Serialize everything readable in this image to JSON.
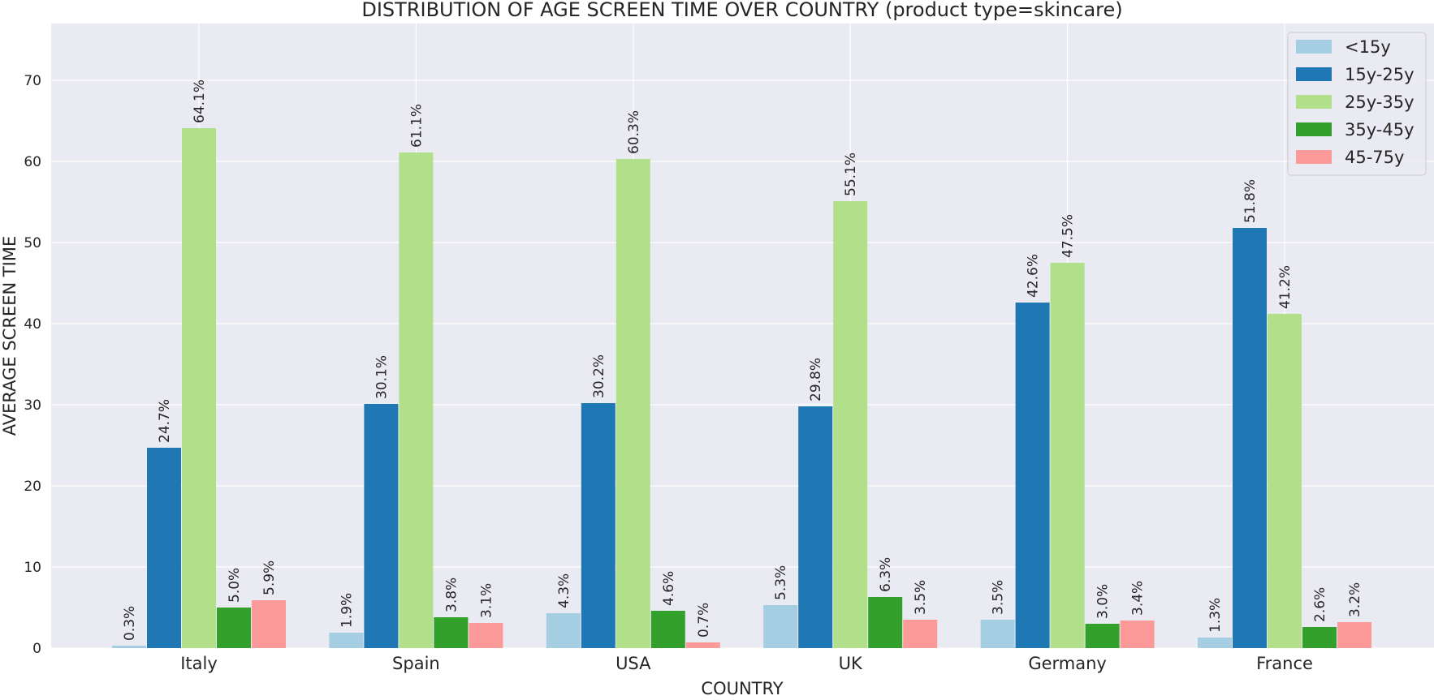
{
  "chart_data": {
    "type": "bar",
    "title": "DISTRIBUTION OF AGE SCREEN TIME OVER COUNTRY (product type=skincare)",
    "xlabel": "COUNTRY",
    "ylabel": "AVERAGE SCREEN TIME",
    "categories": [
      "Italy",
      "Spain",
      "USA",
      "UK",
      "Germany",
      "France"
    ],
    "ylim": [
      0,
      77
    ],
    "yticks": [
      "0",
      "10",
      "20",
      "30",
      "40",
      "50",
      "60",
      "70"
    ],
    "grid": true,
    "legend_position": "top-right",
    "series": [
      {
        "name": "<15y",
        "color": "#a6cee3",
        "values": [
          0.3,
          1.9,
          4.3,
          5.3,
          3.5,
          1.3
        ],
        "labels": [
          "0.3%",
          "1.9%",
          "4.3%",
          "5.3%",
          "3.5%",
          "1.3%"
        ]
      },
      {
        "name": "15y-25y",
        "color": "#1f78b4",
        "values": [
          24.7,
          30.1,
          30.2,
          29.8,
          42.6,
          51.8
        ],
        "labels": [
          "24.7%",
          "30.1%",
          "30.2%",
          "29.8%",
          "42.6%",
          "51.8%"
        ]
      },
      {
        "name": "25y-35y",
        "color": "#b2df8a",
        "values": [
          64.1,
          61.1,
          60.3,
          55.1,
          47.5,
          41.2
        ],
        "labels": [
          "64.1%",
          "61.1%",
          "60.3%",
          "55.1%",
          "47.5%",
          "41.2%"
        ]
      },
      {
        "name": "35y-45y",
        "color": "#33a02c",
        "values": [
          5.0,
          3.8,
          4.6,
          6.3,
          3.0,
          2.6
        ],
        "labels": [
          "5.0%",
          "3.8%",
          "4.6%",
          "6.3%",
          "3.0%",
          "2.6%"
        ]
      },
      {
        "name": "45-75y",
        "color": "#fb9a99",
        "values": [
          5.9,
          3.1,
          0.7,
          3.5,
          3.4,
          3.2
        ],
        "labels": [
          "5.9%",
          "3.1%",
          "0.7%",
          "3.5%",
          "3.4%",
          "3.2%"
        ]
      }
    ],
    "style": {
      "plot_background": "#eaeaf2",
      "grid_color": "#ffffff",
      "text_color": "#262626"
    }
  }
}
